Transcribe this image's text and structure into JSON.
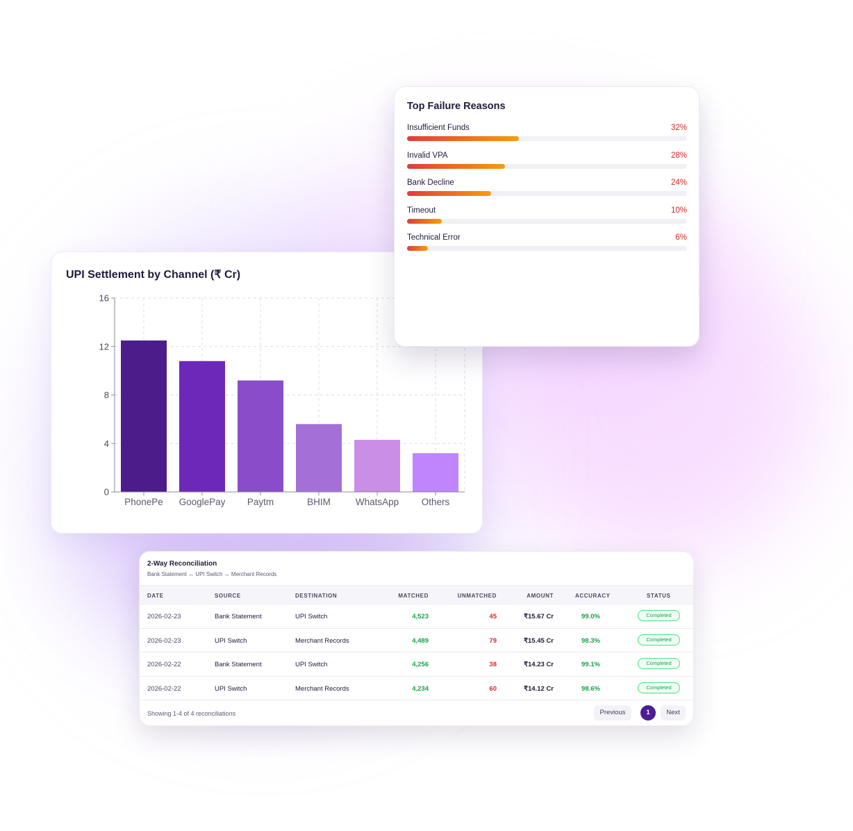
{
  "colors": {
    "accent": "#4c1d95",
    "success": "#16a34a",
    "danger": "#dc2626",
    "bars": [
      "#4c1d8a",
      "#6d28b9",
      "#8b4cc9",
      "#a46fd6",
      "#cb8ee6",
      "#c084fc"
    ]
  },
  "failure_reasons": {
    "title": "Top Failure Reasons",
    "items": [
      {
        "label": "Insufficient Funds",
        "pct_text": "32%",
        "pct": 32
      },
      {
        "label": "Invalid VPA",
        "pct_text": "28%",
        "pct": 28
      },
      {
        "label": "Bank Decline",
        "pct_text": "24%",
        "pct": 24
      },
      {
        "label": "Timeout",
        "pct_text": "10%",
        "pct": 10
      },
      {
        "label": "Technical Error",
        "pct_text": "6%",
        "pct": 6
      }
    ]
  },
  "chart_data": {
    "type": "bar",
    "title": "UPI Settlement by Channel (₹ Cr)",
    "categories": [
      "PhonePe",
      "GooglePay",
      "Paytm",
      "BHIM",
      "WhatsApp",
      "Others"
    ],
    "values": [
      12.5,
      10.8,
      9.2,
      5.6,
      4.3,
      3.2
    ],
    "ylim": [
      0,
      16
    ],
    "yticks": [
      0,
      4,
      8,
      12,
      16
    ],
    "xlabel": "",
    "ylabel": "",
    "grid": true,
    "legend": "none"
  },
  "reconciliation": {
    "title": "2-Way Reconciliation",
    "subtitle": "Bank Statement ↔ UPI Switch ↔ Merchant Records",
    "columns": [
      "DATE",
      "SOURCE",
      "DESTINATION",
      "MATCHED",
      "UNMATCHED",
      "AMOUNT",
      "ACCURACY",
      "STATUS"
    ],
    "rows": [
      {
        "date": "2026-02-23",
        "source": "Bank Statement",
        "destination": "UPI Switch",
        "matched": "4,523",
        "unmatched": "45",
        "amount": "₹15.67 Cr",
        "accuracy": "99.0%",
        "status": "Completed"
      },
      {
        "date": "2026-02-23",
        "source": "UPI Switch",
        "destination": "Merchant Records",
        "matched": "4,489",
        "unmatched": "79",
        "amount": "₹15.45 Cr",
        "accuracy": "98.3%",
        "status": "Completed"
      },
      {
        "date": "2026-02-22",
        "source": "Bank Statement",
        "destination": "UPI Switch",
        "matched": "4,256",
        "unmatched": "38",
        "amount": "₹14.23 Cr",
        "accuracy": "99.1%",
        "status": "Completed"
      },
      {
        "date": "2026-02-22",
        "source": "UPI Switch",
        "destination": "Merchant Records",
        "matched": "4,234",
        "unmatched": "60",
        "amount": "₹14.12 Cr",
        "accuracy": "98.6%",
        "status": "Completed"
      }
    ],
    "footer": "Showing 1-4 of 4 reconciliations",
    "pagination": {
      "previous": "Previous",
      "current": "1",
      "next": "Next"
    }
  }
}
